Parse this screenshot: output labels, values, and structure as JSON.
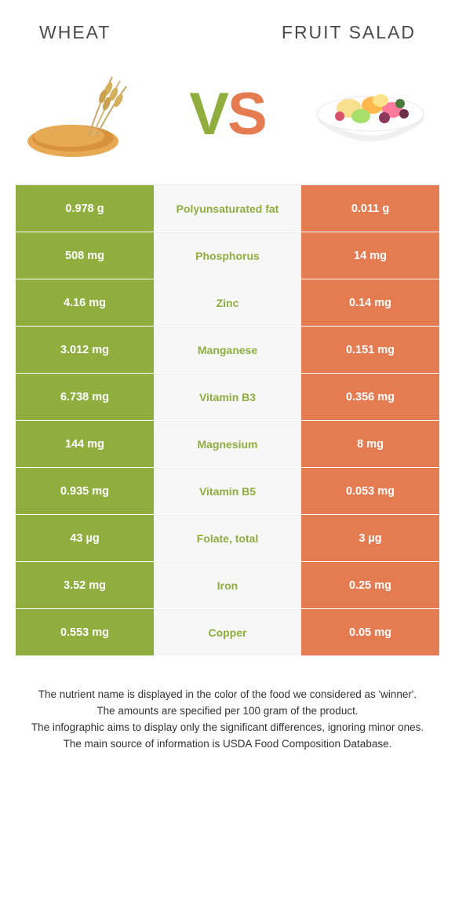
{
  "colors": {
    "left_bg": "#8fae3e",
    "right_bg": "#e47b51",
    "mid_bg": "#f7f7f7",
    "winner_left": "#8fae3e",
    "winner_right": "#e47b51",
    "text_white": "#ffffff"
  },
  "header": {
    "left_title": "Wheat",
    "right_title": "Fruit salad"
  },
  "vs": {
    "v": "V",
    "s": "S"
  },
  "rows": [
    {
      "left": "0.978 g",
      "label": "Polyunsaturated fat",
      "right": "0.011 g",
      "winner": "left"
    },
    {
      "left": "508 mg",
      "label": "Phosphorus",
      "right": "14 mg",
      "winner": "left"
    },
    {
      "left": "4.16 mg",
      "label": "Zinc",
      "right": "0.14 mg",
      "winner": "left"
    },
    {
      "left": "3.012 mg",
      "label": "Manganese",
      "right": "0.151 mg",
      "winner": "left"
    },
    {
      "left": "6.738 mg",
      "label": "Vitamin B3",
      "right": "0.356 mg",
      "winner": "left"
    },
    {
      "left": "144 mg",
      "label": "Magnesium",
      "right": "8 mg",
      "winner": "left"
    },
    {
      "left": "0.935 mg",
      "label": "Vitamin B5",
      "right": "0.053 mg",
      "winner": "left"
    },
    {
      "left": "43 µg",
      "label": "Folate, total",
      "right": "3 µg",
      "winner": "left"
    },
    {
      "left": "3.52 mg",
      "label": "Iron",
      "right": "0.25 mg",
      "winner": "left"
    },
    {
      "left": "0.553 mg",
      "label": "Copper",
      "right": "0.05 mg",
      "winner": "left"
    }
  ],
  "footnotes": {
    "l1": "The nutrient name is displayed in the color of the food we considered as 'winner'.",
    "l2": "The amounts are specified per 100 gram of the product.",
    "l3": "The infographic aims to display only the significant differences, ignoring minor ones.",
    "l4": "The main source of information is USDA Food Composition Database."
  }
}
